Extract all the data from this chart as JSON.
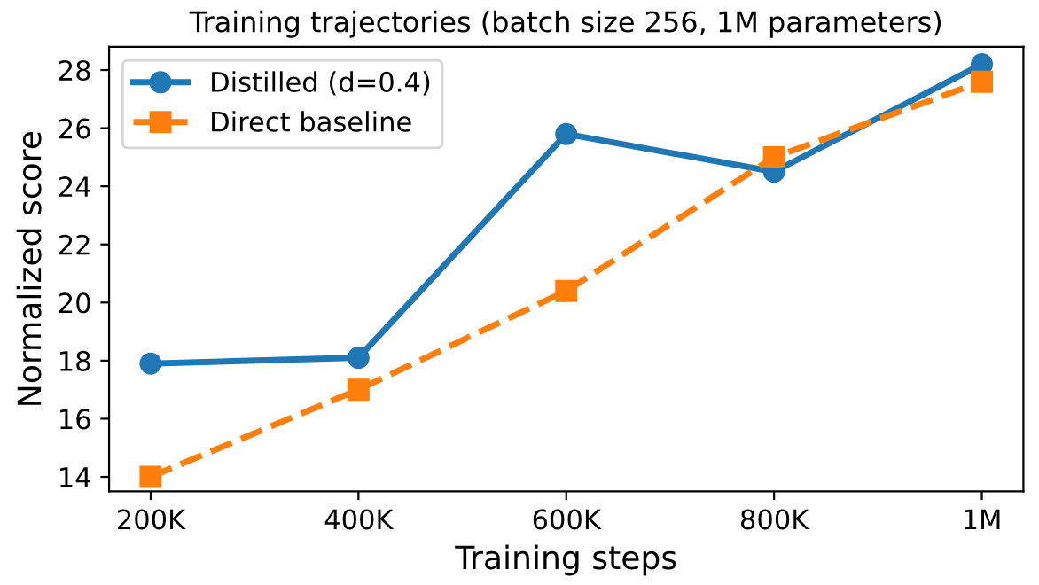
{
  "chart_data": {
    "type": "line",
    "title": "Training trajectories (batch size 256, 1M parameters)",
    "xlabel": "Training steps",
    "ylabel": "Normalized score",
    "categories": [
      "200K",
      "400K",
      "600K",
      "800K",
      "1M"
    ],
    "series": [
      {
        "name": "Distilled (d=0.4)",
        "color": "#1f77b4",
        "marker": "circle",
        "line_style": "solid",
        "values": [
          17.9,
          18.1,
          25.8,
          24.5,
          28.2
        ]
      },
      {
        "name": "Direct baseline",
        "color": "#ff7f0e",
        "marker": "square",
        "line_style": "dashed",
        "values": [
          14.0,
          17.0,
          20.4,
          25.0,
          27.6
        ]
      }
    ],
    "ylim": [
      13.5,
      28.8
    ],
    "yticks": [
      14,
      16,
      18,
      20,
      22,
      24,
      26,
      28
    ],
    "grid": false,
    "legend": "top left"
  }
}
